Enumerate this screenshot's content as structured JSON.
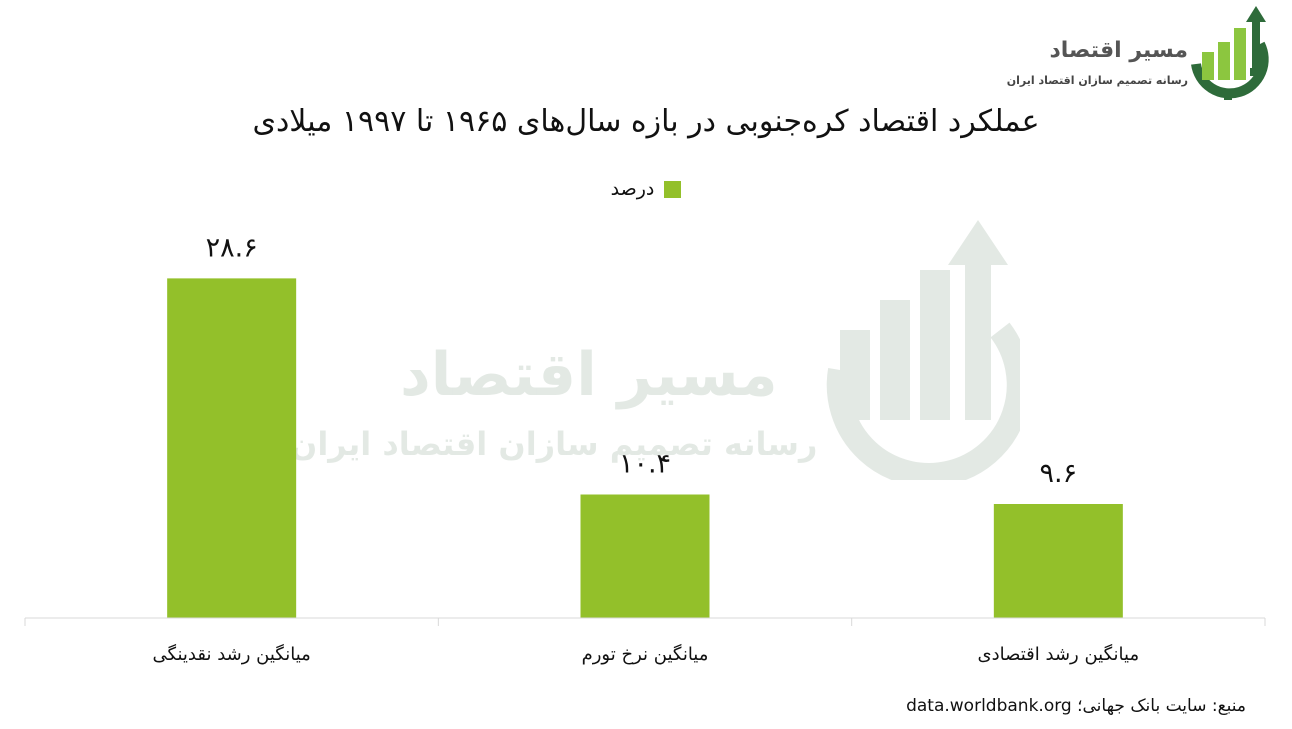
{
  "logo": {
    "name": "مسیر اقتصاد",
    "tagline": "رسانه تصمیم سازان اقتصاد ایران"
  },
  "colors": {
    "bar": "#93c02a",
    "logo_green": "#2e6b3a",
    "logo_lightgreen": "#8cc63f",
    "axis": "#d9d9d9"
  },
  "chart_data": {
    "type": "bar",
    "title": "عملکرد اقتصاد کره‌جنوبی در بازه سال‌های ۱۹۶۵ تا ۱۹۹۷ میلادی",
    "categories": [
      "میانگین رشد نقدینگی",
      "میانگین نرخ تورم",
      "میانگین رشد اقتصادی"
    ],
    "series": [
      {
        "name": "درصد",
        "values": [
          28.6,
          10.4,
          9.6
        ],
        "value_labels": [
          "۲۸.۶",
          "۱۰.۴",
          "۹.۶"
        ]
      }
    ],
    "legend": "top-center",
    "ylim": [
      0,
      32
    ],
    "grid": false,
    "xlabel": "",
    "ylabel": ""
  },
  "source": "منبع: سایت بانک جهانی؛ data.worldbank.org"
}
